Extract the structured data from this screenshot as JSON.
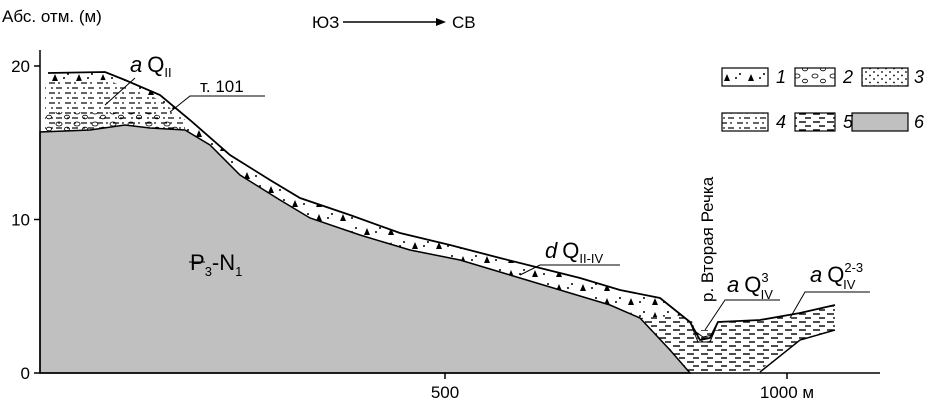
{
  "axis": {
    "y_label": "Абс. отм. (м)",
    "y_ticks": [
      0,
      10,
      20
    ],
    "x_ticks": [
      500,
      {
        "value": 1000,
        "label": "1000 м"
      }
    ]
  },
  "direction": {
    "from": "ЮЗ",
    "to": "СВ"
  },
  "labels": {
    "point": "т. 101",
    "river": "р. Вторая Речка",
    "bedrock": {
      "main": "P",
      "sub": "3",
      "main2": "-N",
      "sub2": "1"
    },
    "alluvium_old": {
      "prefix": "a",
      "symbol": "Q",
      "sub": "II"
    },
    "deluvium": {
      "prefix": "d",
      "symbol": "Q",
      "sub": "II-IV"
    },
    "alluvium_channel": {
      "prefix": "a",
      "symbol": "Q",
      "sub": "IV",
      "sup": "3"
    },
    "alluvium_terrace": {
      "prefix": "a",
      "symbol": "Q",
      "sub": "IV",
      "sup": "2-3"
    }
  },
  "legend": [
    "1",
    "2",
    "3",
    "4",
    "5",
    "6"
  ]
}
